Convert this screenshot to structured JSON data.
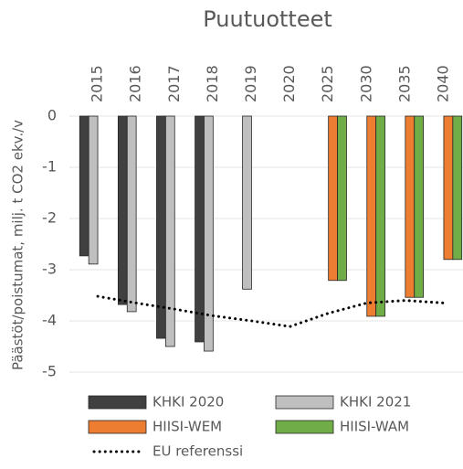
{
  "chart_data": {
    "type": "bar",
    "title": "Puutuotteet",
    "y_label": "Päästöt/poistumat, milj. t CO2 ekv./v",
    "categories": [
      "2015",
      "2016",
      "2017",
      "2018",
      "2019",
      "2020",
      "2025",
      "2030",
      "2035",
      "2040"
    ],
    "series": [
      {
        "name": "KHKI 2020",
        "type": "bar",
        "color": "#404040",
        "values": [
          -2.73,
          -3.68,
          -4.34,
          -4.41,
          null,
          null,
          null,
          null,
          null,
          null
        ]
      },
      {
        "name": "KHKI 2021",
        "type": "bar",
        "color": "#bfbfbf",
        "values": [
          -2.89,
          -3.82,
          -4.5,
          -4.59,
          -3.38,
          null,
          null,
          null,
          null,
          null
        ]
      },
      {
        "name": "HIISI-WEM",
        "type": "bar",
        "color": "#ed7d31",
        "values": [
          null,
          null,
          null,
          null,
          null,
          null,
          -3.21,
          -3.91,
          -3.54,
          -2.8
        ]
      },
      {
        "name": "HIISI-WAM",
        "type": "bar",
        "color": "#70ad47",
        "values": [
          null,
          null,
          null,
          null,
          null,
          null,
          -3.21,
          -3.91,
          -3.54,
          -2.8
        ]
      },
      {
        "name": "EU referenssi",
        "type": "line",
        "style": "dotted",
        "color": "#000000",
        "values": [
          -3.52,
          -3.65,
          -3.77,
          -3.9,
          -4.0,
          -4.11,
          -3.85,
          -3.65,
          -3.6,
          -3.65
        ]
      }
    ],
    "ylim": [
      -5,
      0
    ],
    "yticks": [
      0,
      -1,
      -2,
      -3,
      -4,
      -5
    ],
    "grid": true,
    "legend": "bottom"
  }
}
